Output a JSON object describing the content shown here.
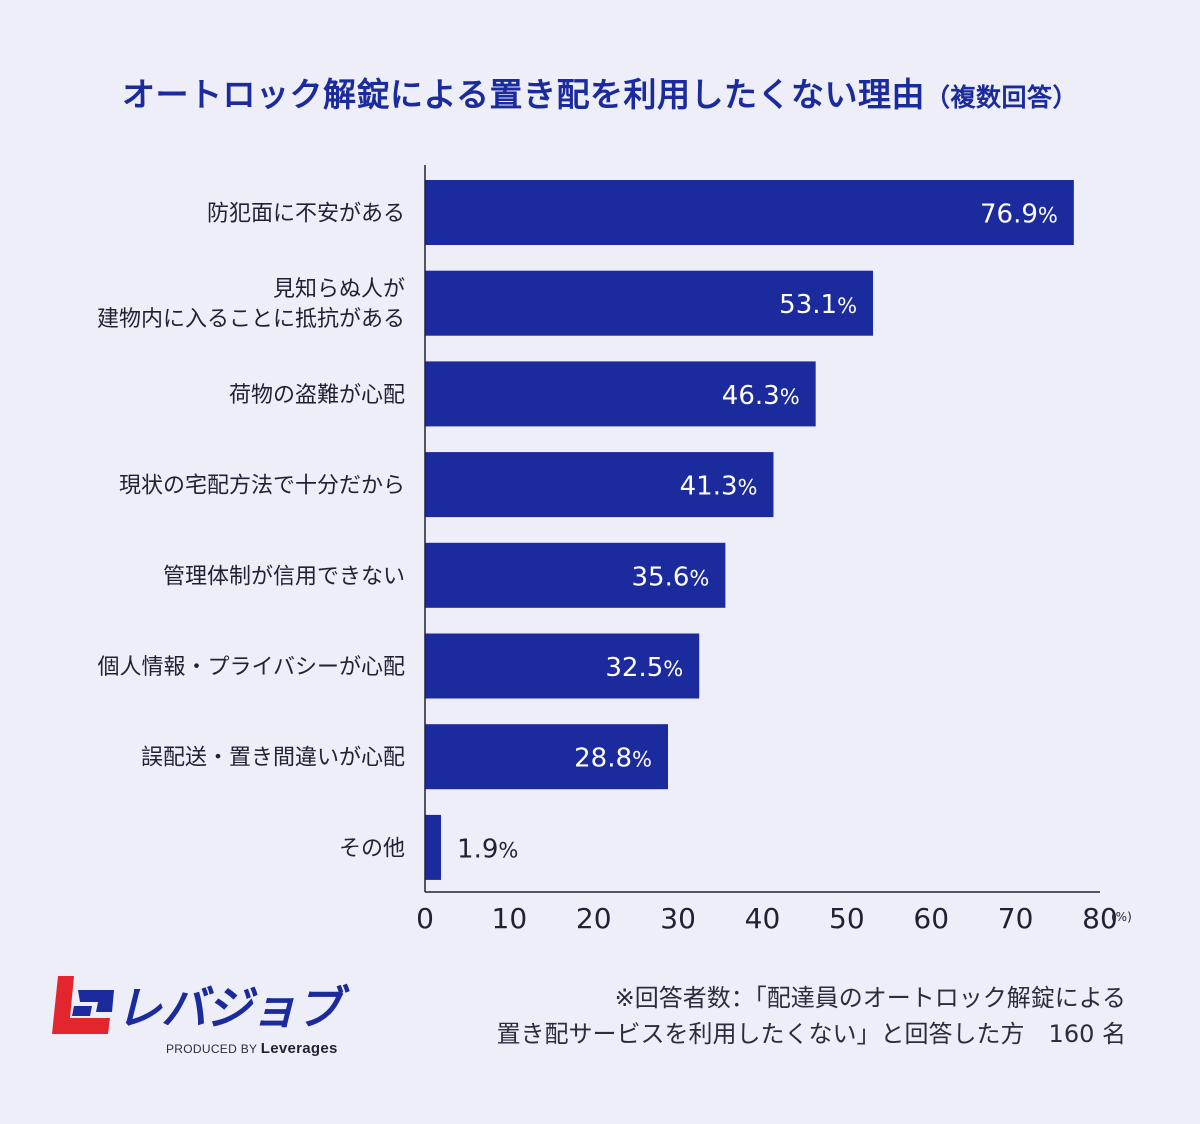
{
  "title": {
    "main": "オートロック解錠による置き配を利用したくない理由",
    "sub": "（複数回答）"
  },
  "chart_data": {
    "type": "bar",
    "orientation": "horizontal",
    "categories": [
      "防犯面に不安がある",
      "見知らぬ人が\n建物内に入ることに抵抗がある",
      "荷物の盗難が心配",
      "現状の宅配方法で十分だから",
      "管理体制が信用できない",
      "個人情報・プライバシーが心配",
      "誤配送・置き間違いが心配",
      "その他"
    ],
    "values": [
      76.9,
      53.1,
      46.3,
      41.3,
      35.6,
      32.5,
      28.8,
      1.9
    ],
    "data_label_suffix": "%",
    "xlim": [
      0,
      80
    ],
    "xticks": [
      0,
      10,
      20,
      30,
      40,
      50,
      60,
      70,
      80
    ],
    "x_unit": "(%)",
    "grid": false,
    "legend": "none"
  },
  "colors": {
    "bar": "#1b2a9c",
    "title": "#1b2a9c",
    "background": "#edeef7",
    "label_inside": "#ffffff",
    "label_outside": "#1f2233"
  },
  "footnote": {
    "line1": "※回答者数：「配達員のオートロック解錠による",
    "line2": "置き配サービスを利用したくない」と回答した方　160 名"
  },
  "logo": {
    "name": "レバジョブ",
    "produced_by": "PRODUCED BY",
    "company": "Leverages"
  }
}
